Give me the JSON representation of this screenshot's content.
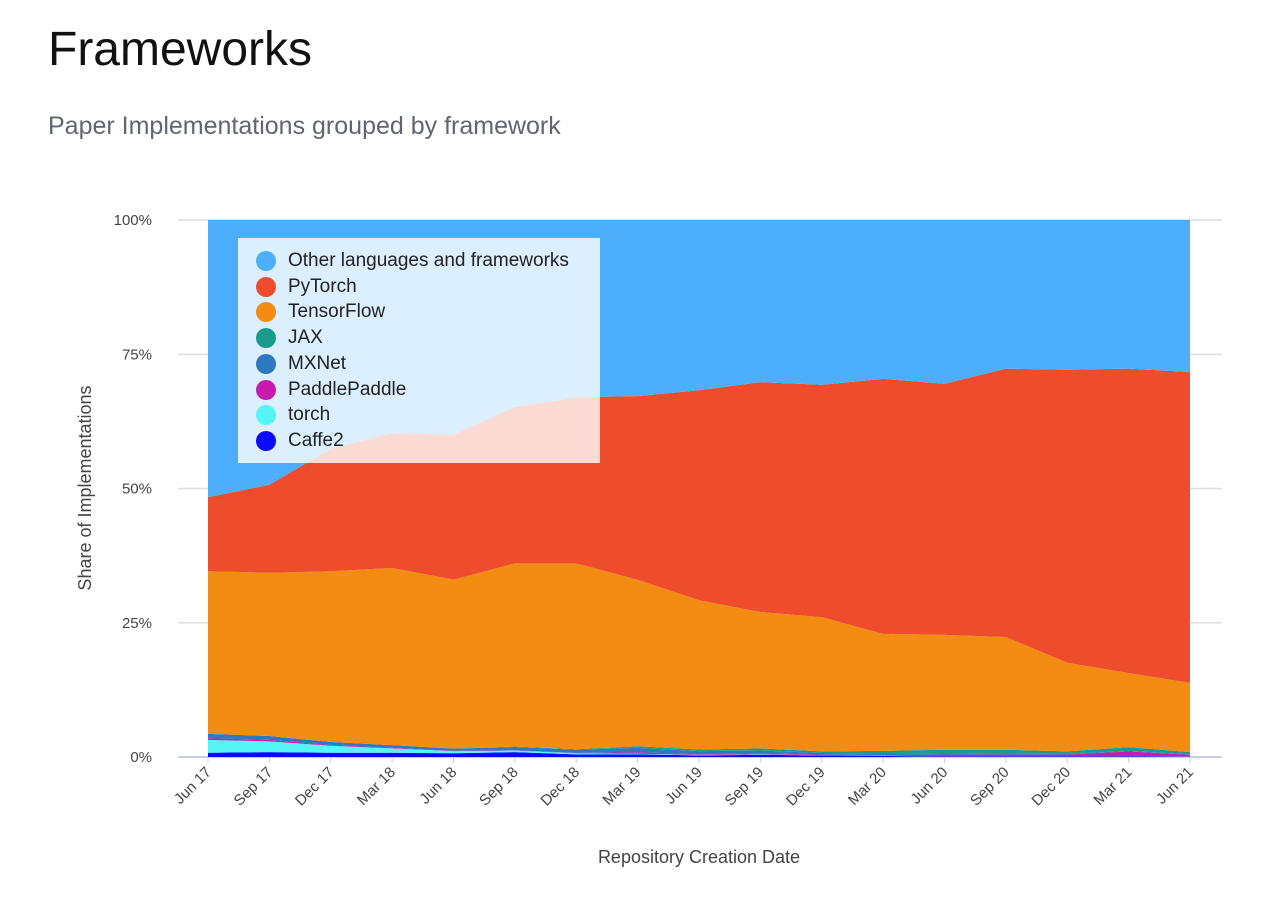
{
  "title": "Frameworks",
  "subtitle": "Paper Implementations grouped by framework",
  "chart_data": {
    "type": "area",
    "stacked": true,
    "normalized": true,
    "xlabel": "Repository Creation Date",
    "ylabel": "Share of Implementations",
    "ylim": [
      0,
      100
    ],
    "yticks": [
      "0%",
      "25%",
      "50%",
      "75%",
      "100%"
    ],
    "categories": [
      "Jun 17",
      "Sep 17",
      "Dec 17",
      "Mar 18",
      "Jun 18",
      "Sep 18",
      "Dec 18",
      "Mar 19",
      "Jun 19",
      "Sep 19",
      "Dec 19",
      "Mar 20",
      "Jun 20",
      "Sep 20",
      "Dec 20",
      "Mar 21",
      "Jun 21"
    ],
    "legend_position": "top-left",
    "grid": true,
    "series": [
      {
        "name": "Caffe2",
        "color": "#0a0aff",
        "values": [
          0.8,
          0.9,
          0.8,
          0.8,
          0.7,
          0.9,
          0.5,
          0.5,
          0.3,
          0.4,
          0.3,
          0.2,
          0.1,
          0.1,
          0.1,
          0.1,
          0.05
        ]
      },
      {
        "name": "torch",
        "color": "#55f5f5",
        "values": [
          2.4,
          2.0,
          1.3,
          0.8,
          0.4,
          0.3,
          0.2,
          0.1,
          0.1,
          0.1,
          0.05,
          0.05,
          0.05,
          0.05,
          0.05,
          0.05,
          0.05
        ]
      },
      {
        "name": "PaddlePaddle",
        "color": "#c81aaf",
        "values": [
          0.3,
          0.3,
          0.1,
          0.1,
          0.05,
          0.05,
          0.05,
          0.3,
          0.1,
          0.2,
          0.1,
          0.1,
          0.3,
          0.3,
          0.3,
          0.9,
          0.3
        ]
      },
      {
        "name": "MXNet",
        "color": "#2e78be",
        "values": [
          0.8,
          0.7,
          0.6,
          0.5,
          0.4,
          0.6,
          0.6,
          0.8,
          0.6,
          0.5,
          0.3,
          0.3,
          0.3,
          0.2,
          0.1,
          0.1,
          0.1
        ]
      },
      {
        "name": "JAX",
        "color": "#1a9c8c",
        "values": [
          0,
          0,
          0,
          0,
          0,
          0.1,
          0.1,
          0.3,
          0.3,
          0.4,
          0.3,
          0.5,
          0.6,
          0.7,
          0.5,
          0.7,
          0.4
        ]
      },
      {
        "name": "TensorFlow",
        "color": "#f28c13",
        "values": [
          30.3,
          30.4,
          31.8,
          33.0,
          31.5,
          34.1,
          34.6,
          31.0,
          27.8,
          25.4,
          25.0,
          21.8,
          21.4,
          21.0,
          16.5,
          13.8,
          12.9
        ]
      },
      {
        "name": "PyTorch",
        "color": "#ee4c2c",
        "values": [
          13.8,
          16.4,
          22.8,
          25.1,
          27.0,
          29.1,
          30.9,
          34.2,
          39.1,
          42.8,
          43.3,
          47.5,
          46.8,
          50.0,
          54.6,
          56.7,
          57.9
        ]
      },
      {
        "name": "Other languages and frameworks",
        "color": "#4daefc",
        "values": [
          51.6,
          49.3,
          42.6,
          39.7,
          40.0,
          34.8,
          33.0,
          32.8,
          31.7,
          30.2,
          30.7,
          29.6,
          30.5,
          27.7,
          27.9,
          27.7,
          28.3
        ]
      }
    ]
  }
}
